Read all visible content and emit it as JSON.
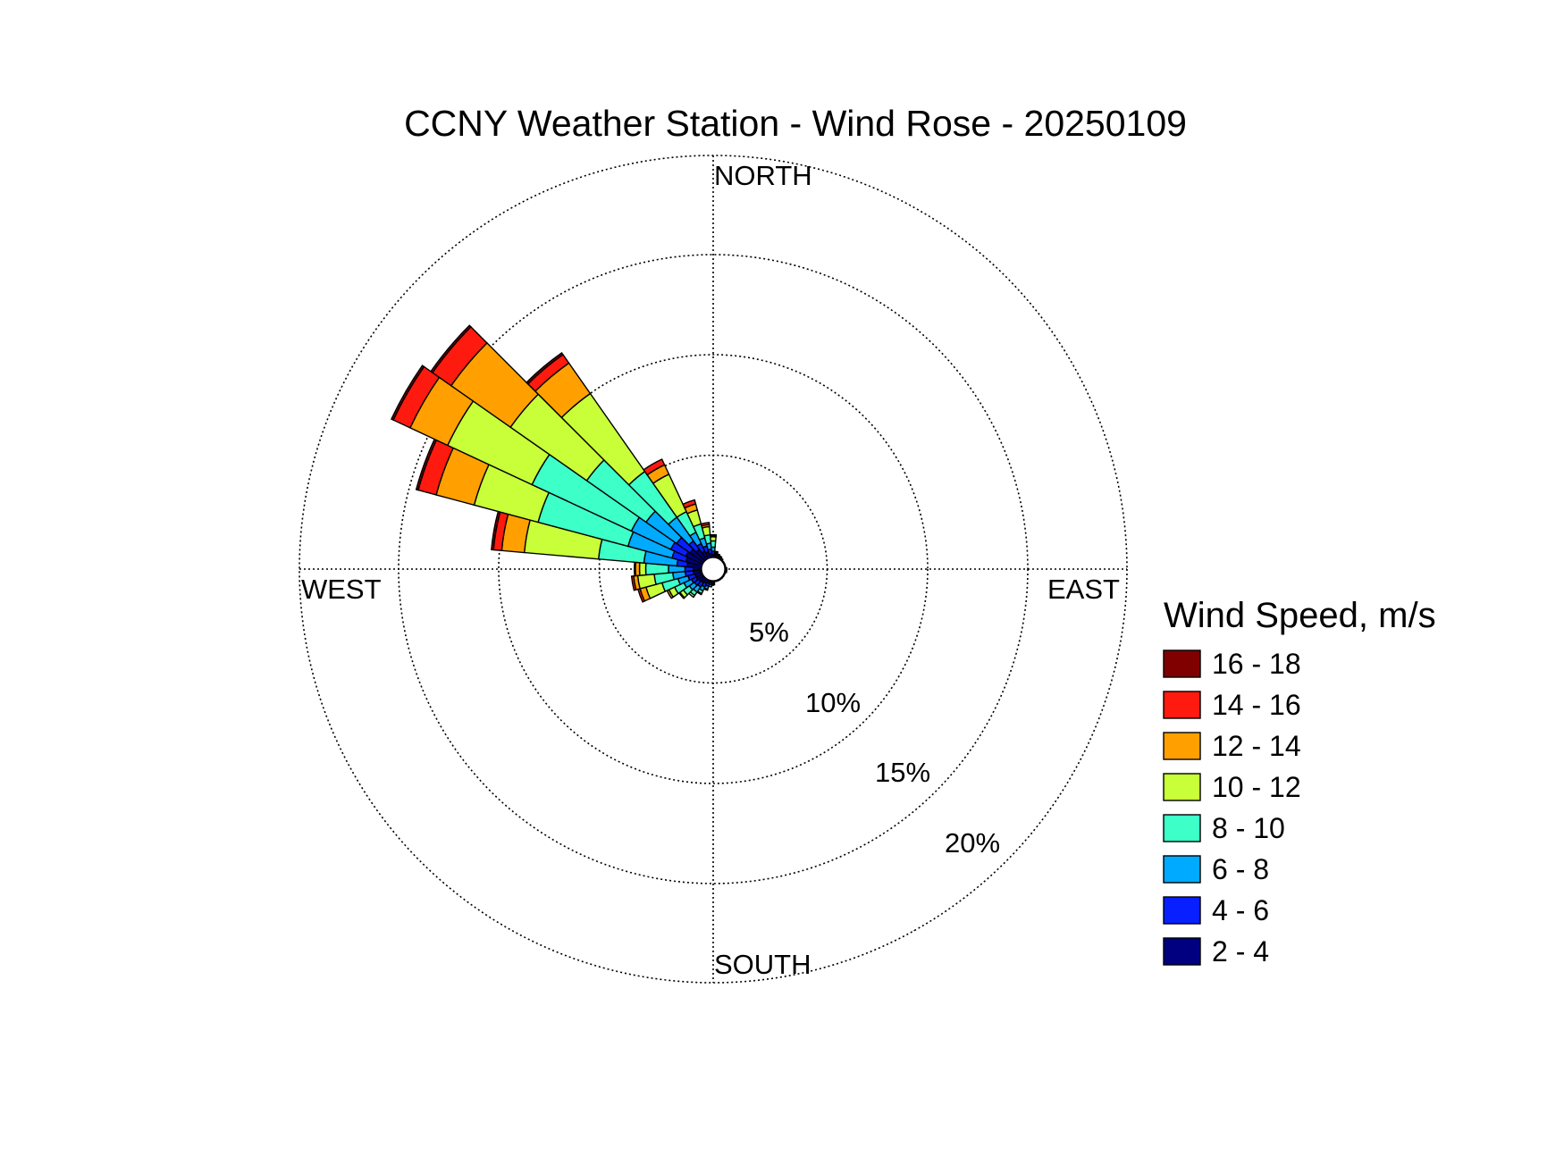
{
  "chart_data": {
    "type": "windrose",
    "title": "CCNY Weather Station - Wind Rose - 20250109",
    "directions": {
      "north": "NORTH",
      "south": "SOUTH",
      "east": "EAST",
      "west": "WEST"
    },
    "radial_ticks": [
      {
        "value": 5,
        "label": "5%"
      },
      {
        "value": 10,
        "label": "10%"
      },
      {
        "value": 15,
        "label": "15%"
      },
      {
        "value": 20,
        "label": "20%"
      }
    ],
    "radial_max": 20,
    "legend": {
      "title": "Wind Speed, m/s",
      "bins": [
        {
          "label": "16 - 18",
          "color": "#800000"
        },
        {
          "label": "14 - 16",
          "color": "#ff1a10"
        },
        {
          "label": "12 - 14",
          "color": "#ffa000"
        },
        {
          "label": "10 - 12",
          "color": "#c8ff38"
        },
        {
          "label": "8 - 10",
          "color": "#3dffc8"
        },
        {
          "label": "6 - 8",
          "color": "#00aaff"
        },
        {
          "label": "4 - 6",
          "color": "#0820ff"
        },
        {
          "label": "2 - 4",
          "color": "#000080"
        }
      ]
    },
    "sector_width_deg": 10,
    "sector_units": "cumulative percent, bins ordered 2-4, 4-6, 6-8, 8-10, 10-12, 12-14, 14-16, 16-18",
    "sectors": [
      {
        "direction_deg": 270,
        "cumulative_percent": [
          0.4,
          0.8,
          1.6,
          2.7,
          3.0,
          3.2,
          3.25,
          3.25
        ]
      },
      {
        "direction_deg": 280,
        "cumulative_percent": [
          0.7,
          1.2,
          2.8,
          5.0,
          8.6,
          9.7,
          10.1,
          10.2
        ]
      },
      {
        "direction_deg": 290,
        "cumulative_percent": [
          0.8,
          1.5,
          3.7,
          8.2,
          11.4,
          13.3,
          14.2,
          14.3
        ]
      },
      {
        "direction_deg": 300,
        "cumulative_percent": [
          0.9,
          1.7,
          3.8,
          9.1,
          13.6,
          15.6,
          16.5,
          16.6
        ]
      },
      {
        "direction_deg": 310,
        "cumulative_percent": [
          0.8,
          1.6,
          3.4,
          6.9,
          11.4,
          14.9,
          16.0,
          16.1
        ]
      },
      {
        "direction_deg": 320,
        "cumulative_percent": [
          0.6,
          1.1,
          2.5,
          5.2,
          9.8,
          11.6,
          12.1,
          12.2
        ]
      },
      {
        "direction_deg": 330,
        "cumulative_percent": [
          0.4,
          0.8,
          1.4,
          2.5,
          4.5,
          5.0,
          5.3,
          5.3
        ]
      },
      {
        "direction_deg": 340,
        "cumulative_percent": [
          0.3,
          0.6,
          1.0,
          1.7,
          2.4,
          2.7,
          2.9,
          2.9
        ]
      },
      {
        "direction_deg": 350,
        "cumulative_percent": [
          0.2,
          0.4,
          0.7,
          1.1,
          1.5,
          1.6,
          1.7,
          1.7
        ]
      },
      {
        "direction_deg": 0,
        "cumulative_percent": [
          0.15,
          0.3,
          0.5,
          0.8,
          1.0,
          1.05,
          1.1,
          1.1
        ]
      },
      {
        "direction_deg": 10,
        "cumulative_percent": [
          0.1,
          0.15,
          0.2,
          0.25,
          0.3,
          0.3,
          0.3,
          0.3
        ]
      },
      {
        "direction_deg": 20,
        "cumulative_percent": [
          0.1,
          0.15,
          0.2,
          0.2,
          0.2,
          0.2,
          0.2,
          0.2
        ]
      },
      {
        "direction_deg": 30,
        "cumulative_percent": [
          0.1,
          0.1,
          0.15,
          0.15,
          0.15,
          0.15,
          0.15,
          0.15
        ]
      },
      {
        "direction_deg": 40,
        "cumulative_percent": [
          0.1,
          0.1,
          0.1,
          0.1,
          0.1,
          0.1,
          0.1,
          0.1
        ]
      },
      {
        "direction_deg": 50,
        "cumulative_percent": [
          0.05,
          0.05,
          0.05,
          0.05,
          0.05,
          0.05,
          0.05,
          0.05
        ]
      },
      {
        "direction_deg": 60,
        "cumulative_percent": [
          0.05,
          0.05,
          0.05,
          0.05,
          0.05,
          0.05,
          0.05,
          0.05
        ]
      },
      {
        "direction_deg": 70,
        "cumulative_percent": [
          0.05,
          0.05,
          0.05,
          0.05,
          0.05,
          0.05,
          0.05,
          0.05
        ]
      },
      {
        "direction_deg": 80,
        "cumulative_percent": [
          0.05,
          0.05,
          0.05,
          0.05,
          0.05,
          0.05,
          0.05,
          0.05
        ]
      },
      {
        "direction_deg": 90,
        "cumulative_percent": [
          0.1,
          0.1,
          0.1,
          0.1,
          0.1,
          0.1,
          0.1,
          0.1
        ]
      },
      {
        "direction_deg": 100,
        "cumulative_percent": [
          0.1,
          0.1,
          0.1,
          0.1,
          0.1,
          0.1,
          0.1,
          0.1
        ]
      },
      {
        "direction_deg": 110,
        "cumulative_percent": [
          0.05,
          0.05,
          0.05,
          0.05,
          0.05,
          0.05,
          0.05,
          0.05
        ]
      },
      {
        "direction_deg": 120,
        "cumulative_percent": [
          0.05,
          0.05,
          0.05,
          0.05,
          0.05,
          0.05,
          0.05,
          0.05
        ]
      },
      {
        "direction_deg": 130,
        "cumulative_percent": [
          0.05,
          0.05,
          0.05,
          0.05,
          0.05,
          0.05,
          0.05,
          0.05
        ]
      },
      {
        "direction_deg": 140,
        "cumulative_percent": [
          0.05,
          0.05,
          0.05,
          0.05,
          0.05,
          0.05,
          0.05,
          0.05
        ]
      },
      {
        "direction_deg": 150,
        "cumulative_percent": [
          0.05,
          0.05,
          0.05,
          0.05,
          0.05,
          0.05,
          0.05,
          0.05
        ]
      },
      {
        "direction_deg": 160,
        "cumulative_percent": [
          0.05,
          0.05,
          0.05,
          0.05,
          0.05,
          0.05,
          0.05,
          0.05
        ]
      },
      {
        "direction_deg": 170,
        "cumulative_percent": [
          0.05,
          0.05,
          0.05,
          0.05,
          0.05,
          0.05,
          0.05,
          0.05
        ]
      },
      {
        "direction_deg": 180,
        "cumulative_percent": [
          0.1,
          0.15,
          0.2,
          0.2,
          0.2,
          0.2,
          0.2,
          0.2
        ]
      },
      {
        "direction_deg": 190,
        "cumulative_percent": [
          0.1,
          0.2,
          0.3,
          0.3,
          0.3,
          0.3,
          0.3,
          0.3
        ]
      },
      {
        "direction_deg": 200,
        "cumulative_percent": [
          0.15,
          0.3,
          0.45,
          0.5,
          0.5,
          0.5,
          0.5,
          0.5
        ]
      },
      {
        "direction_deg": 210,
        "cumulative_percent": [
          0.2,
          0.4,
          0.6,
          0.75,
          0.8,
          0.8,
          0.8,
          0.8
        ]
      },
      {
        "direction_deg": 220,
        "cumulative_percent": [
          0.25,
          0.5,
          0.8,
          1.0,
          1.1,
          1.1,
          1.1,
          1.1
        ]
      },
      {
        "direction_deg": 230,
        "cumulative_percent": [
          0.3,
          0.55,
          0.85,
          1.2,
          1.4,
          1.45,
          1.45,
          1.45
        ]
      },
      {
        "direction_deg": 240,
        "cumulative_percent": [
          0.35,
          0.6,
          1.0,
          1.5,
          1.8,
          1.9,
          1.9,
          1.9
        ]
      },
      {
        "direction_deg": 250,
        "cumulative_percent": [
          0.35,
          0.7,
          1.2,
          2.0,
          2.8,
          3.1,
          3.2,
          3.2
        ]
      },
      {
        "direction_deg": 260,
        "cumulative_percent": [
          0.4,
          0.8,
          1.4,
          2.3,
          3.1,
          3.3,
          3.4,
          3.4
        ]
      }
    ]
  }
}
